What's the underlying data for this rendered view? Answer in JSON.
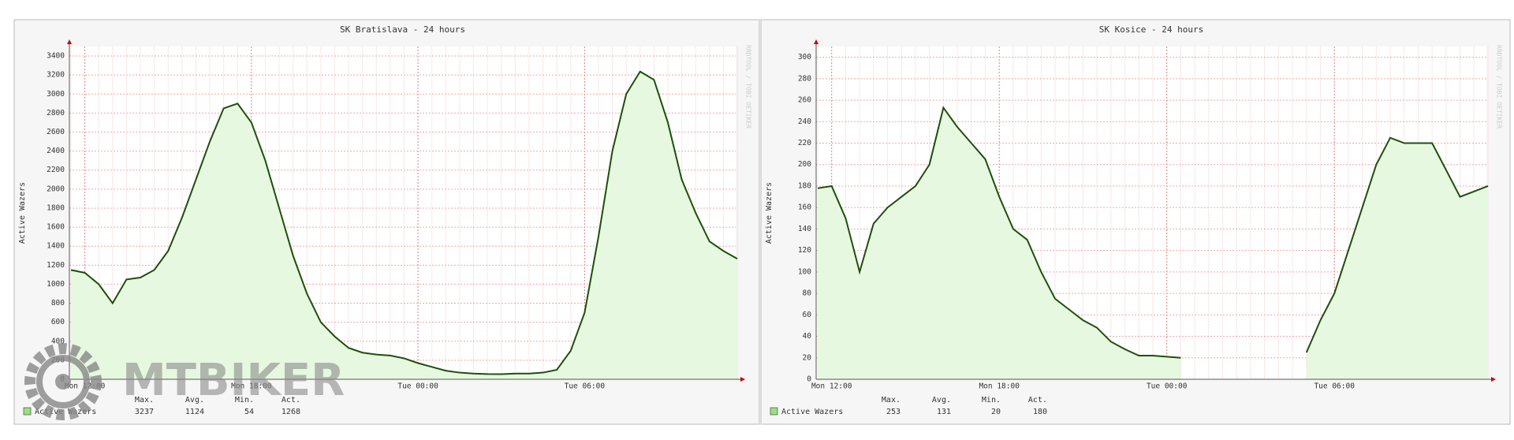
{
  "watermark": "MTBIKER",
  "chart_data": [
    {
      "type": "line",
      "title": "SK Bratislava - 24 hours",
      "y_label": "Active Wazers",
      "side_text": "RRDTOOL / TOBI OETIKER",
      "categories": [
        null,
        "Mon 12:00",
        null,
        null,
        null,
        null,
        null,
        null,
        null,
        null,
        null,
        null,
        null,
        "Mon 18:00",
        null,
        null,
        null,
        null,
        null,
        null,
        null,
        null,
        null,
        null,
        null,
        "Tue 00:00",
        null,
        null,
        null,
        null,
        null,
        null,
        null,
        null,
        null,
        null,
        null,
        "Tue 06:00",
        null,
        null,
        null,
        null,
        null,
        null,
        null,
        null,
        null,
        null,
        null
      ],
      "series": [
        {
          "name": "Active Wazers",
          "color": "#1d4f0c",
          "fill": "#e6f8df",
          "values": [
            1150,
            1120,
            1000,
            800,
            1050,
            1070,
            1150,
            1350,
            1700,
            2100,
            2500,
            2850,
            2900,
            2700,
            2300,
            1800,
            1300,
            900,
            600,
            450,
            330,
            280,
            260,
            250,
            220,
            170,
            130,
            90,
            70,
            60,
            55,
            54,
            60,
            60,
            70,
            100,
            300,
            700,
            1500,
            2400,
            3000,
            3237,
            3150,
            2700,
            2100,
            1750,
            1450,
            1350,
            1268
          ]
        }
      ],
      "ylim": [
        0,
        3500
      ],
      "yticks": [
        0,
        200,
        400,
        600,
        800,
        1000,
        1200,
        1400,
        1600,
        1800,
        2000,
        2200,
        2400,
        2600,
        2800,
        3000,
        3200,
        3400
      ],
      "grid": true,
      "stats": {
        "labels": [
          "Max.",
          "Avg.",
          "Min.",
          "Act."
        ],
        "values": [
          3237,
          1124,
          54,
          1268
        ]
      }
    },
    {
      "type": "line",
      "title": "SK Kosice - 24 hours",
      "y_label": "Active Wazers",
      "side_text": "RRDTOOL / TOBI OETIKER",
      "categories": [
        null,
        "Mon 12:00",
        null,
        null,
        null,
        null,
        null,
        null,
        null,
        null,
        null,
        null,
        null,
        "Mon 18:00",
        null,
        null,
        null,
        null,
        null,
        null,
        null,
        null,
        null,
        null,
        null,
        "Tue 00:00",
        null,
        null,
        null,
        null,
        null,
        null,
        null,
        null,
        null,
        null,
        null,
        "Tue 06:00",
        null,
        null,
        null,
        null,
        null,
        null,
        null,
        null,
        null,
        null,
        null
      ],
      "series": [
        {
          "name": "Active Wazers",
          "color": "#1d4f0c",
          "fill": "#e6f8df",
          "values": [
            178,
            180,
            150,
            100,
            145,
            160,
            170,
            180,
            200,
            253,
            235,
            220,
            205,
            170,
            140,
            130,
            100,
            75,
            65,
            55,
            48,
            35,
            28,
            22,
            22,
            21,
            20,
            null,
            null,
            null,
            null,
            null,
            null,
            null,
            null,
            25,
            55,
            80,
            120,
            160,
            200,
            225,
            220,
            220,
            220,
            195,
            170,
            175,
            180
          ]
        }
      ],
      "ylim": [
        0,
        310
      ],
      "yticks": [
        0,
        20,
        40,
        60,
        80,
        100,
        120,
        140,
        160,
        180,
        200,
        220,
        240,
        260,
        280,
        300
      ],
      "grid": true,
      "stats": {
        "labels": [
          "Max.",
          "Avg.",
          "Min.",
          "Act."
        ],
        "values": [
          253,
          131,
          20,
          180
        ]
      }
    }
  ]
}
